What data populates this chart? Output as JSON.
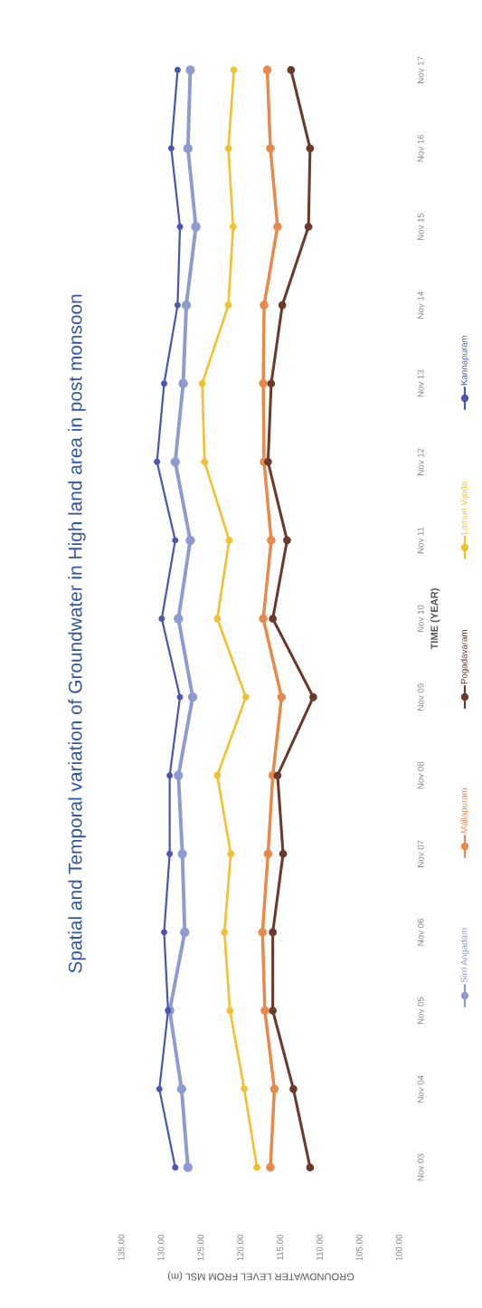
{
  "chart_data": {
    "type": "line",
    "orientation": "horizontal",
    "title": "Spatial and Temporal variation of Groundwater in High land area in post monsoon",
    "xlabel": "GROUNDWATER LEVEL FROM MSL (m)",
    "ylabel": "TIME (YEAR)",
    "categories": [
      "Nov 17",
      "Nov 16",
      "Nov 15",
      "Nov 14",
      "Nov 13",
      "Nov 12",
      "Nov 11",
      "Nov 10",
      "Nov 09",
      "Nov 08",
      "Nov 07",
      "Nov 06",
      "Nov 05",
      "Nov 04",
      "Nov 03"
    ],
    "xlim": [
      135,
      100
    ],
    "xticks": [
      {
        "value": 135,
        "label": "135.00"
      },
      {
        "value": 130,
        "label": "130.00"
      },
      {
        "value": 125,
        "label": "125.00"
      },
      {
        "value": 120,
        "label": "120.00"
      },
      {
        "value": 115,
        "label": "115.00"
      },
      {
        "value": 110,
        "label": "110.00"
      },
      {
        "value": 105,
        "label": "105.00"
      },
      {
        "value": 100,
        "label": "100.00"
      }
    ],
    "series": [
      {
        "name": "Sirri Angadam",
        "color": "#8d9bd0",
        "values": [
          126.4,
          126.7,
          125.7,
          126.9,
          127.3,
          128.3,
          126.4,
          127.9,
          126.1,
          127.9,
          127.4,
          127.1,
          129.0,
          127.5,
          126.7
        ]
      },
      {
        "name": "Mallapuram",
        "color": "#e8894a",
        "values": [
          116.7,
          116.3,
          115.4,
          117.1,
          117.2,
          117.1,
          116.2,
          117.2,
          114.9,
          116.0,
          116.6,
          117.3,
          117.0,
          115.8,
          116.3
        ]
      },
      {
        "name": "Pogadavaram",
        "color": "#6b3a2a",
        "values": [
          113.7,
          111.3,
          111.5,
          114.8,
          116.2,
          116.6,
          114.2,
          116.0,
          110.9,
          115.4,
          114.7,
          116.0,
          116.0,
          113.4,
          111.3
        ]
      },
      {
        "name": "Lamuri Vijoda",
        "color": "#f5c030",
        "values": [
          120.9,
          121.6,
          121.0,
          121.6,
          124.9,
          124.6,
          121.5,
          123.0,
          119.4,
          123.0,
          121.3,
          122.1,
          121.4,
          119.6,
          118.0
        ]
      },
      {
        "name": "Kannapuram",
        "color": "#4a56b0",
        "values": [
          128.0,
          128.8,
          127.7,
          128.0,
          129.7,
          130.6,
          128.3,
          130.0,
          127.7,
          129.0,
          129.0,
          129.7,
          129.2,
          130.3,
          128.3
        ]
      }
    ],
    "marker": "circle",
    "grid": false,
    "legend": "bottom"
  }
}
